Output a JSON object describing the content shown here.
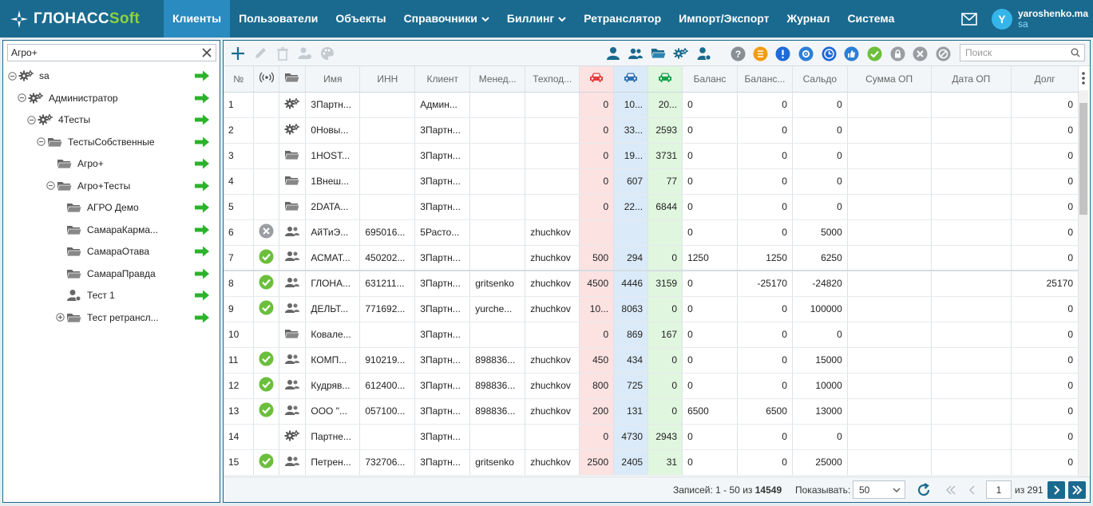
{
  "brand": {
    "part1": "ГЛОНАСС",
    "part2": "Soft"
  },
  "nav": [
    {
      "label": "Клиенты",
      "active": true
    },
    {
      "label": "Пользователи"
    },
    {
      "label": "Объекты"
    },
    {
      "label": "Справочники",
      "dropdown": true
    },
    {
      "label": "Биллинг",
      "dropdown": true
    },
    {
      "label": "Ретранслятор"
    },
    {
      "label": "Импорт/Экспорт"
    },
    {
      "label": "Журнал"
    },
    {
      "label": "Система"
    }
  ],
  "user": {
    "initial": "Y",
    "name": "yaroshenko.ma",
    "role": "sa"
  },
  "tree": {
    "search_value": "Агро+",
    "items": [
      {
        "label": "sa",
        "icon": "gears-icon",
        "toggle": "collapse"
      },
      {
        "label": "Администратор",
        "icon": "gears-icon",
        "toggle": "collapse"
      },
      {
        "label": "4Тесты",
        "icon": "gears-icon",
        "toggle": "collapse"
      },
      {
        "label": "ТестыСобственные",
        "icon": "folder-open-icon",
        "toggle": "collapse"
      },
      {
        "label": "Агро+",
        "icon": "folder-open-icon",
        "toggle": ""
      },
      {
        "label": "Агро+Тесты",
        "icon": "folder-open-icon",
        "toggle": "collapse"
      },
      {
        "label": "АГРО Демо",
        "icon": "folder-open-icon",
        "toggle": ""
      },
      {
        "label": "СамараКарма...",
        "icon": "folder-open-icon",
        "toggle": ""
      },
      {
        "label": "СамараОтава",
        "icon": "folder-open-icon",
        "toggle": ""
      },
      {
        "label": "СамараПравда",
        "icon": "folder-open-icon",
        "toggle": ""
      },
      {
        "label": "Тест 1",
        "icon": "user-gear-icon",
        "toggle": ""
      },
      {
        "label": "Тест ретрансл...",
        "icon": "folder-open-icon",
        "toggle": "expand"
      }
    ]
  },
  "search": {
    "placeholder": "Поиск"
  },
  "columns": [
    "№",
    "",
    "",
    "Имя",
    "ИНН",
    "Клиент",
    "Менед...",
    "Техпод...",
    "",
    "",
    "",
    "Баланс",
    "Баланс...",
    "Сальдо",
    "Сумма ОП",
    "Дата ОП",
    "Долг"
  ],
  "rows": [
    {
      "n": "1",
      "st": "",
      "ic": "gears",
      "name": "3Партн...",
      "inn": "",
      "client": "Админ...",
      "mgr": "",
      "tech": "",
      "r": "0",
      "b": "10...",
      "g": "20...",
      "bal": "0",
      "bal2": "0",
      "saldo": "0",
      "sum": "",
      "date": "",
      "debt": "0"
    },
    {
      "n": "2",
      "st": "",
      "ic": "gears",
      "name": "0Новы...",
      "inn": "",
      "client": "3Партн...",
      "mgr": "",
      "tech": "",
      "r": "0",
      "b": "33...",
      "g": "2593",
      "bal": "0",
      "bal2": "0",
      "saldo": "0",
      "sum": "",
      "date": "",
      "debt": "0"
    },
    {
      "n": "3",
      "st": "",
      "ic": "folder",
      "name": "1HOST...",
      "inn": "",
      "client": "3Партн...",
      "mgr": "",
      "tech": "",
      "r": "0",
      "b": "19...",
      "g": "3731",
      "bal": "0",
      "bal2": "0",
      "saldo": "0",
      "sum": "",
      "date": "",
      "debt": "0"
    },
    {
      "n": "4",
      "st": "",
      "ic": "folder",
      "name": "1Внеш...",
      "inn": "",
      "client": "3Партн...",
      "mgr": "",
      "tech": "",
      "r": "0",
      "b": "607",
      "g": "77",
      "bal": "0",
      "bal2": "0",
      "saldo": "0",
      "sum": "",
      "date": "",
      "debt": "0"
    },
    {
      "n": "5",
      "st": "",
      "ic": "folder",
      "name": "2DATA...",
      "inn": "",
      "client": "3Партн...",
      "mgr": "",
      "tech": "",
      "r": "0",
      "b": "22...",
      "g": "6844",
      "bal": "0",
      "bal2": "0",
      "saldo": "0",
      "sum": "",
      "date": "",
      "debt": "0"
    },
    {
      "n": "6",
      "st": "x",
      "ic": "users",
      "name": "АйТиЭ...",
      "inn": "695016...",
      "client": "5Расто...",
      "mgr": "",
      "tech": "zhuchkov",
      "r": "",
      "b": "",
      "g": "",
      "bal": "0",
      "bal2": "0",
      "saldo": "5000",
      "sum": "",
      "date": "",
      "debt": "0"
    },
    {
      "n": "7",
      "st": "ok",
      "ic": "users",
      "name": "АСМАТ...",
      "inn": "450202...",
      "client": "3Партн...",
      "mgr": "",
      "tech": "zhuchkov",
      "r": "500",
      "b": "294",
      "g": "0",
      "bal": "1250",
      "bal2": "1250",
      "saldo": "6250",
      "sum": "",
      "date": "",
      "debt": "0"
    },
    {
      "n": "8",
      "st": "ok",
      "ic": "users",
      "name": "ГЛОНА...",
      "inn": "631211...",
      "client": "3Партн...",
      "mgr": "gritsenko",
      "tech": "zhuchkov",
      "r": "4500",
      "b": "4446",
      "g": "3159",
      "bal": "0",
      "bal2": "-25170",
      "saldo": "-24820",
      "sum": "",
      "date": "",
      "debt": "25170"
    },
    {
      "n": "9",
      "st": "ok",
      "ic": "users",
      "name": "ДЕЛЬТ...",
      "inn": "771692...",
      "client": "3Партн...",
      "mgr": "yurche...",
      "tech": "zhuchkov",
      "r": "10...",
      "b": "8063",
      "g": "0",
      "bal": "0",
      "bal2": "0",
      "saldo": "100000",
      "sum": "",
      "date": "",
      "debt": "0"
    },
    {
      "n": "10",
      "st": "",
      "ic": "folder",
      "name": "Ковале...",
      "inn": "",
      "client": "3Партн...",
      "mgr": "",
      "tech": "",
      "r": "0",
      "b": "869",
      "g": "167",
      "bal": "0",
      "bal2": "0",
      "saldo": "0",
      "sum": "",
      "date": "",
      "debt": "0"
    },
    {
      "n": "11",
      "st": "ok",
      "ic": "users",
      "name": "КОМП...",
      "inn": "910219...",
      "client": "3Партн...",
      "mgr": "898836...",
      "tech": "zhuchkov",
      "r": "450",
      "b": "434",
      "g": "0",
      "bal": "0",
      "bal2": "0",
      "saldo": "15000",
      "sum": "",
      "date": "",
      "debt": "0"
    },
    {
      "n": "12",
      "st": "ok",
      "ic": "users",
      "name": "Кудряв...",
      "inn": "612400...",
      "client": "3Партн...",
      "mgr": "898836...",
      "tech": "zhuchkov",
      "r": "800",
      "b": "725",
      "g": "0",
      "bal": "0",
      "bal2": "0",
      "saldo": "10000",
      "sum": "",
      "date": "",
      "debt": "0"
    },
    {
      "n": "13",
      "st": "ok",
      "ic": "users",
      "name": "ООО \"...",
      "inn": "057100...",
      "client": "3Партн...",
      "mgr": "898836...",
      "tech": "zhuchkov",
      "r": "200",
      "b": "131",
      "g": "0",
      "bal": "6500",
      "bal2": "6500",
      "saldo": "13000",
      "sum": "",
      "date": "",
      "debt": "0"
    },
    {
      "n": "14",
      "st": "",
      "ic": "gears",
      "name": "Партне...",
      "inn": "",
      "client": "3Партн...",
      "mgr": "",
      "tech": "",
      "r": "0",
      "b": "4730",
      "g": "2943",
      "bal": "0",
      "bal2": "0",
      "saldo": "0",
      "sum": "",
      "date": "",
      "debt": "0"
    },
    {
      "n": "15",
      "st": "ok",
      "ic": "users",
      "name": "Петрен...",
      "inn": "732706...",
      "client": "3Партн...",
      "mgr": "gritsenko",
      "tech": "zhuchkov",
      "r": "2500",
      "b": "2405",
      "g": "31",
      "bal": "0",
      "bal2": "0",
      "saldo": "25000",
      "sum": "",
      "date": "",
      "debt": "0"
    }
  ],
  "footer": {
    "records_prefix": "Записей: 1 - 50 из",
    "records_total": "14549",
    "show_label": "Показывать:",
    "page_size": "50",
    "page": "1",
    "pages_text": "из 291"
  },
  "colors": {
    "primary": "#1a6a8f",
    "active_tab": "#2a8bc0",
    "arrow": "#2bb32b",
    "ok": "#6cbf3c"
  }
}
